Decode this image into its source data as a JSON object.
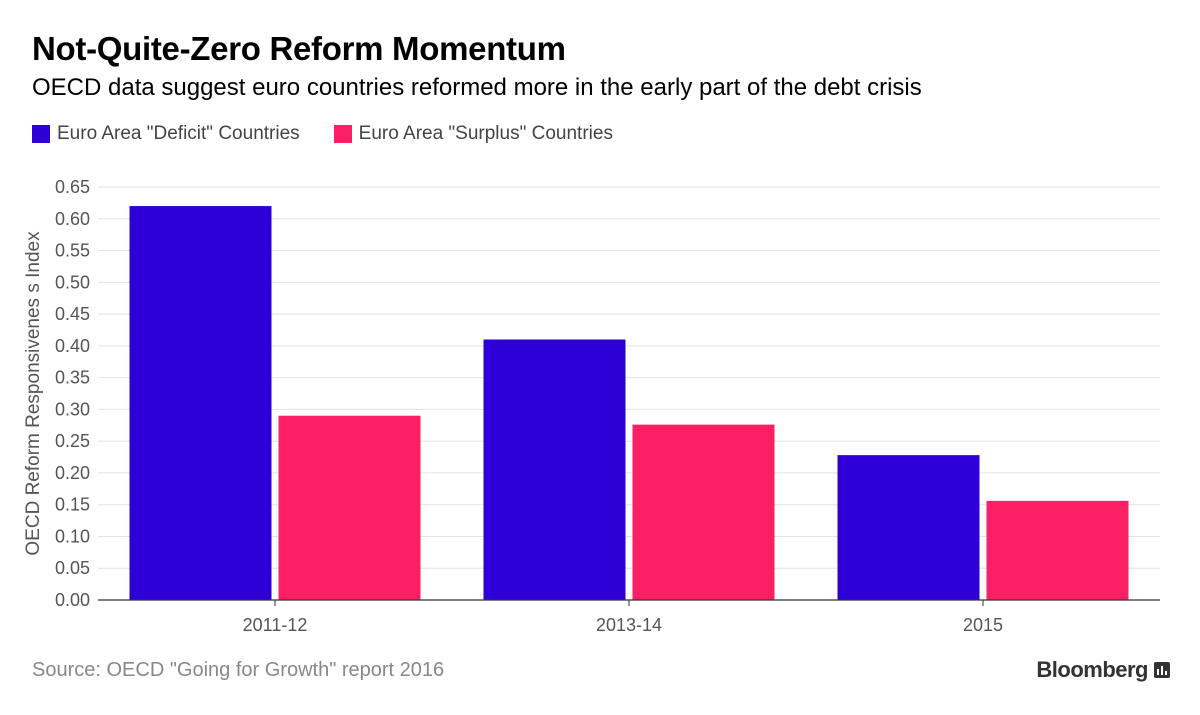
{
  "header": {
    "title": "Not-Quite-Zero Reform Momentum",
    "subtitle": "OECD data suggest euro countries reformed more in the early part of the debt crisis"
  },
  "colors": {
    "deficit": "#2c00d6",
    "surplus": "#fc1f65",
    "grid": "#e2e2e2",
    "axis_text": "#555555"
  },
  "chart_data": {
    "type": "bar",
    "categories": [
      "2011-12",
      "2013-14",
      "2015"
    ],
    "series": [
      {
        "name": "Euro Area \"Deficit\" Countries",
        "values": [
          0.62,
          0.41,
          0.228
        ]
      },
      {
        "name": "Euro Area \"Surplus\" Countries",
        "values": [
          0.29,
          0.276,
          0.156
        ]
      }
    ],
    "title": "Not-Quite-Zero Reform Momentum",
    "subtitle": "OECD data suggest euro countries reformed more in the early part of the debt crisis",
    "xlabel": "",
    "ylabel": "OECD Reform Responsivenes s Index",
    "ylim": [
      0,
      0.65
    ],
    "yticks": [
      "0.00",
      "0.05",
      "0.10",
      "0.15",
      "0.20",
      "0.25",
      "0.30",
      "0.35",
      "0.40",
      "0.45",
      "0.50",
      "0.55",
      "0.60",
      "0.65"
    ],
    "grid": true,
    "legend_position": "top-left"
  },
  "footer": {
    "source": "Source: OECD \"Going for Growth\" report 2016",
    "brand": "Bloomberg"
  }
}
